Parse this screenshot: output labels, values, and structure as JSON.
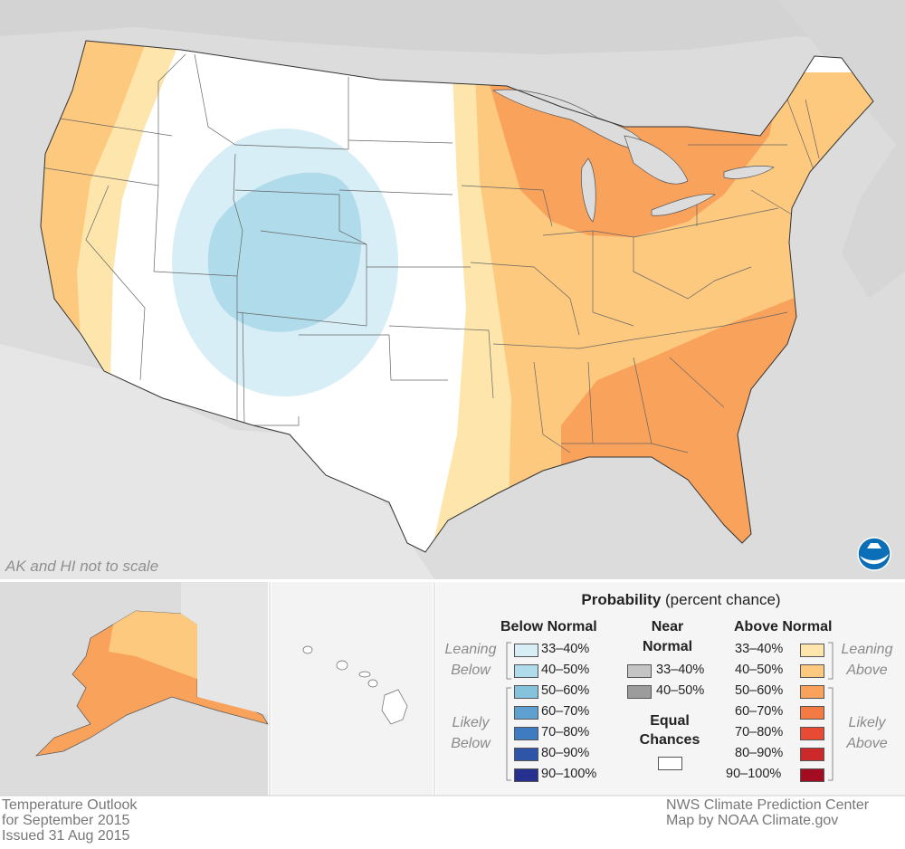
{
  "map": {
    "note": "AK and HI not to scale",
    "logo_icon": "noaa-logo-icon",
    "colors": {
      "background": "#dcdcdc",
      "land": "#eeeeee",
      "equal_chances": "#ffffff",
      "below_33_40": "#d8eef7",
      "below_40_50": "#afdbea",
      "above_33_40": "#fde5ab",
      "above_40_50": "#fdc97e",
      "above_50_60": "#f9a25c"
    }
  },
  "legend": {
    "title_bold": "Probability",
    "title_rest": " (percent chance)",
    "below": {
      "heading": "Below Normal",
      "leaning_label_1": "Leaning",
      "leaning_label_2": "Below",
      "likely_label_1": "Likely",
      "likely_label_2": "Below",
      "rows": [
        {
          "label": "33–40%",
          "color": "#d8eef7"
        },
        {
          "label": "40–50%",
          "color": "#afdbea"
        },
        {
          "label": "50–60%",
          "color": "#85c2db"
        },
        {
          "label": "60–70%",
          "color": "#5ea0cf"
        },
        {
          "label": "70–80%",
          "color": "#3f7bc0"
        },
        {
          "label": "80–90%",
          "color": "#2f55a8"
        },
        {
          "label": "90–100%",
          "color": "#25308f"
        }
      ]
    },
    "near": {
      "heading_1": "Near",
      "heading_2": "Normal",
      "rows": [
        {
          "label": "33–40%",
          "color": "#c4c4c4"
        },
        {
          "label": "40–50%",
          "color": "#9c9c9c"
        }
      ],
      "equal_1": "Equal",
      "equal_2": "Chances",
      "equal_color": "#ffffff"
    },
    "above": {
      "heading": "Above Normal",
      "leaning_label_1": "Leaning",
      "leaning_label_2": "Above",
      "likely_label_1": "Likely",
      "likely_label_2": "Above",
      "rows": [
        {
          "label": "33–40%",
          "color": "#fde5ab"
        },
        {
          "label": "40–50%",
          "color": "#fdc97e"
        },
        {
          "label": "50–60%",
          "color": "#f9a25c"
        },
        {
          "label": "60–70%",
          "color": "#f47a43"
        },
        {
          "label": "70–80%",
          "color": "#e84b34"
        },
        {
          "label": "80–90%",
          "color": "#cc2a2a"
        },
        {
          "label": "90–100%",
          "color": "#a30d22"
        }
      ]
    }
  },
  "footer": {
    "left_1": "Temperature Outlook",
    "left_2": "for September 2015",
    "left_3": "Issued 31 Aug 2015",
    "right_1": "NWS Climate Prediction Center",
    "right_2": "Map by NOAA Climate.gov"
  }
}
